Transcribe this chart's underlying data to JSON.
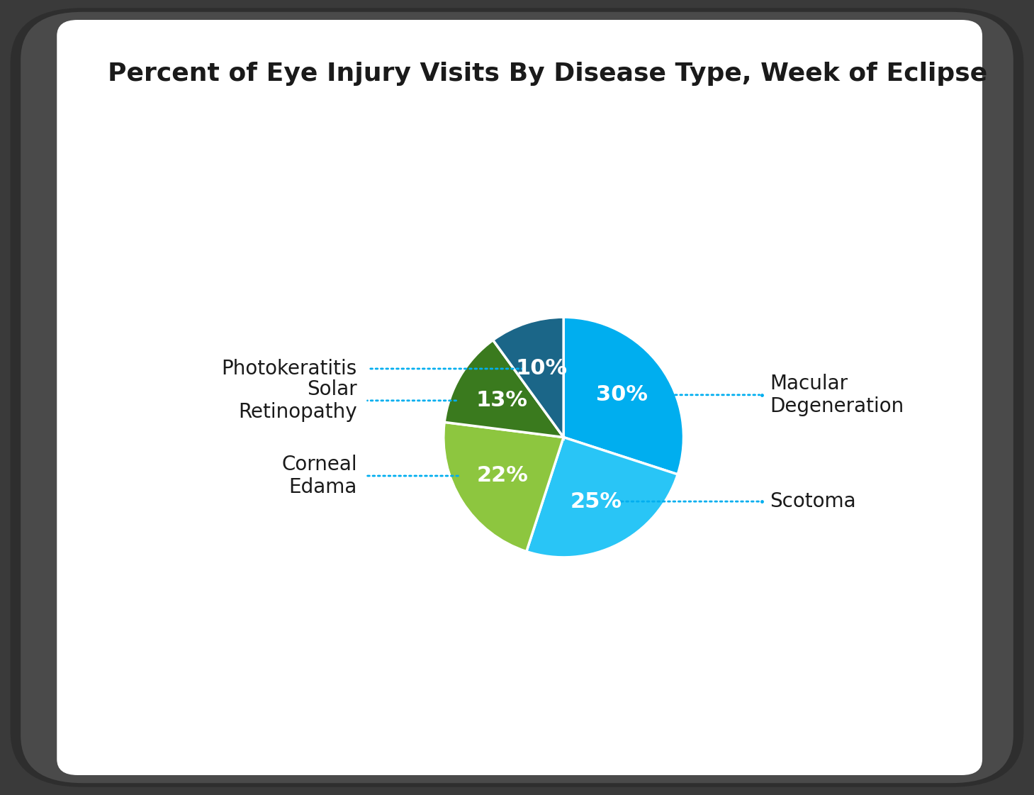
{
  "title": "Percent of Eye Injury Visits By Disease Type, Week of Eclipse",
  "title_fontsize": 26,
  "title_fontweight": "bold",
  "slices": [
    {
      "label": "Macular\nDegeneration",
      "value": 30,
      "color": "#00AEEF",
      "pct_text": "30%",
      "text_side": "right"
    },
    {
      "label": "Scotoma",
      "value": 25,
      "color": "#29C5F6",
      "pct_text": "25%",
      "text_side": "right"
    },
    {
      "label": "Corneal\nEdama",
      "value": 22,
      "color": "#8DC63F",
      "pct_text": "22%",
      "text_side": "left"
    },
    {
      "label": "Solar\nRetinopathy",
      "value": 13,
      "color": "#3A7A1E",
      "pct_text": "13%",
      "text_side": "left"
    },
    {
      "label": "Photokeratitis",
      "value": 10,
      "color": "#1B6688",
      "pct_text": "10%",
      "text_side": "left"
    }
  ],
  "pct_fontsize": 22,
  "label_fontsize": 20,
  "connector_color": "#00AEEF",
  "bg_color": "#FFFFFF",
  "frame_outer_color": "#444444",
  "frame_inner_color": "#888888",
  "text_color": "#1a1a1a",
  "startangle": 90
}
